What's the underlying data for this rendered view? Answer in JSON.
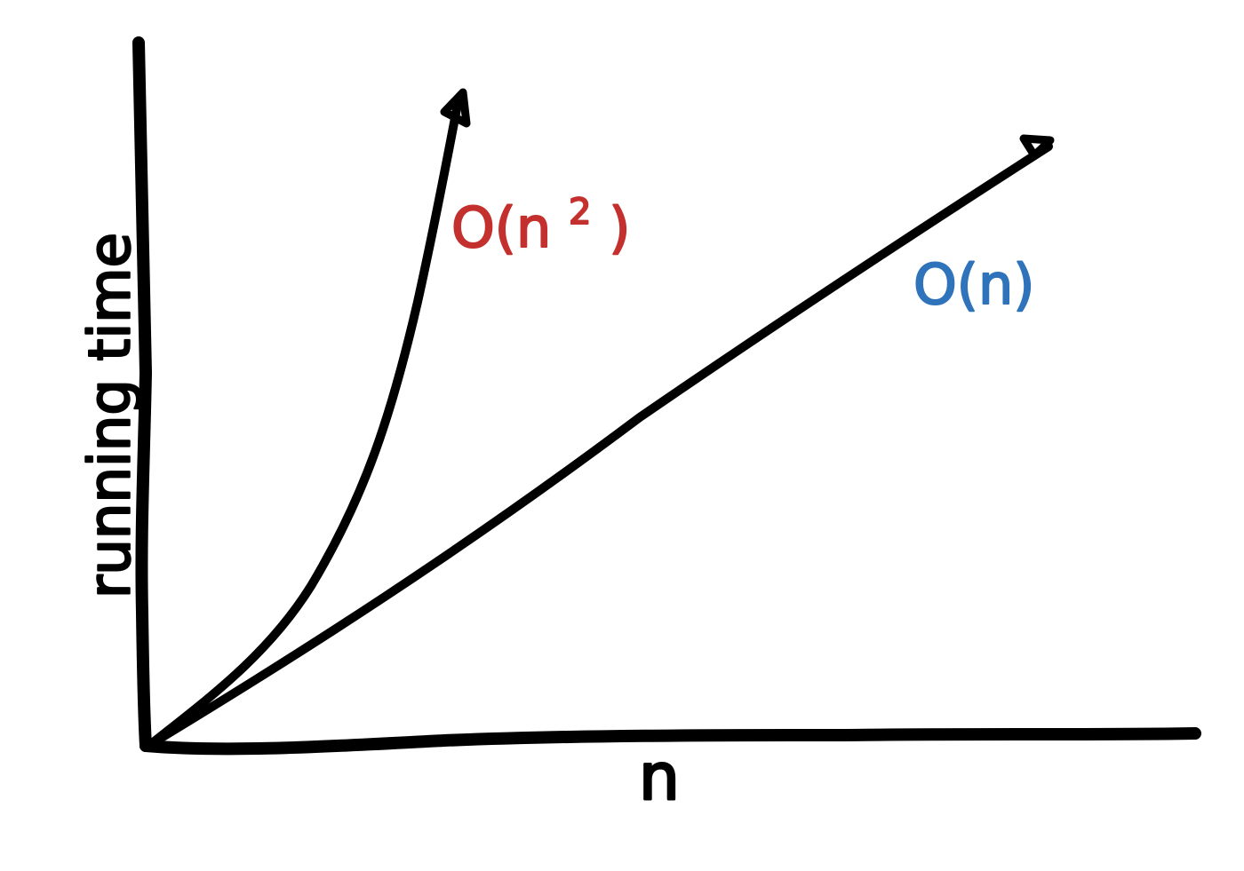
{
  "diagram": {
    "ylabel": "running time",
    "xlabel": "n",
    "curves": [
      {
        "label": "O(n",
        "superscript": "2",
        "suffix": ")",
        "color": "#c4302e"
      },
      {
        "label": "O(n)",
        "color": "#2f73bb"
      }
    ],
    "colors": {
      "axis": "#000000",
      "background": "#ffffff"
    }
  }
}
